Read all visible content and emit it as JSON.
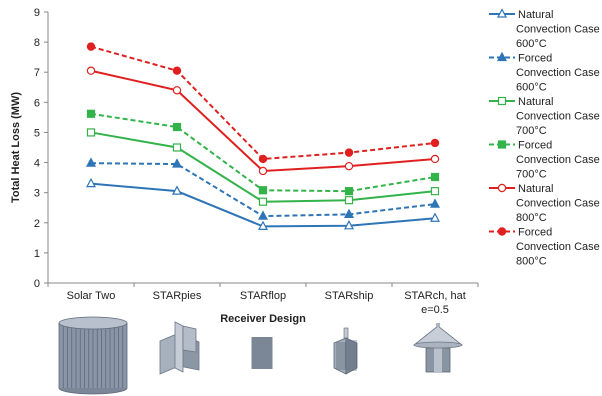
{
  "chart_data": {
    "type": "line",
    "categories": [
      "Solar Two",
      "STARpies",
      "STARflop",
      "STARship",
      "STARch, hat e=0.5"
    ],
    "category_lines": [
      [
        "Solar Two"
      ],
      [
        "STARpies"
      ],
      [
        "STARflop"
      ],
      [
        "STARship"
      ],
      [
        "STARch, hat",
        "e=0.5"
      ]
    ],
    "xlabel": "Receiver Design",
    "ylabel": "Total Heat Loss (MW)",
    "ylim": [
      0,
      9
    ],
    "yticks": [
      "0",
      "1",
      "2",
      "3",
      "4",
      "5",
      "6",
      "7",
      "8",
      "9"
    ],
    "grid": false,
    "legend_position": "right",
    "series": [
      {
        "name": "Natural Convection Case 600°C",
        "legend_lines": [
          "Natural",
          "Convection Case",
          "600°C"
        ],
        "color": "#2e75b6",
        "dash": false,
        "marker": "triangle-open",
        "values": [
          3.3,
          3.05,
          1.88,
          1.9,
          2.15
        ]
      },
      {
        "name": "Forced Convection Case 600°C",
        "legend_lines": [
          "Forced",
          "Convection Case",
          "600°C"
        ],
        "color": "#2e75b6",
        "dash": true,
        "marker": "triangle-filled",
        "values": [
          3.98,
          3.95,
          2.22,
          2.28,
          2.62
        ]
      },
      {
        "name": "Natural Convection Case 700°C",
        "legend_lines": [
          "Natural",
          "Convection Case",
          "700°C"
        ],
        "color": "#33b34a",
        "dash": false,
        "marker": "square-open",
        "values": [
          5.0,
          4.5,
          2.7,
          2.75,
          3.05
        ]
      },
      {
        "name": "Forced Convection Case 700°C",
        "legend_lines": [
          "Forced",
          "Convection Case",
          "700°C"
        ],
        "color": "#33b34a",
        "dash": true,
        "marker": "square-filled",
        "values": [
          5.62,
          5.18,
          3.08,
          3.05,
          3.52
        ]
      },
      {
        "name": "Natural Convection Case 800°C",
        "legend_lines": [
          "Natural",
          "Convection Case",
          "800°C"
        ],
        "color": "#e02020",
        "dash": false,
        "marker": "circle-open",
        "values": [
          7.05,
          6.4,
          3.72,
          3.88,
          4.12
        ]
      },
      {
        "name": "Forced Convection Case 800°C",
        "legend_lines": [
          "Forced",
          "Convection Case",
          "800°C"
        ],
        "color": "#e02020",
        "dash": true,
        "marker": "circle-filled",
        "values": [
          7.85,
          7.05,
          4.12,
          4.33,
          4.65
        ]
      }
    ]
  },
  "receiver_images": [
    "cylinder-receiver-icon",
    "cross-receiver-icon",
    "flat-panel-receiver-icon",
    "ship-receiver-icon",
    "hat-receiver-icon"
  ]
}
